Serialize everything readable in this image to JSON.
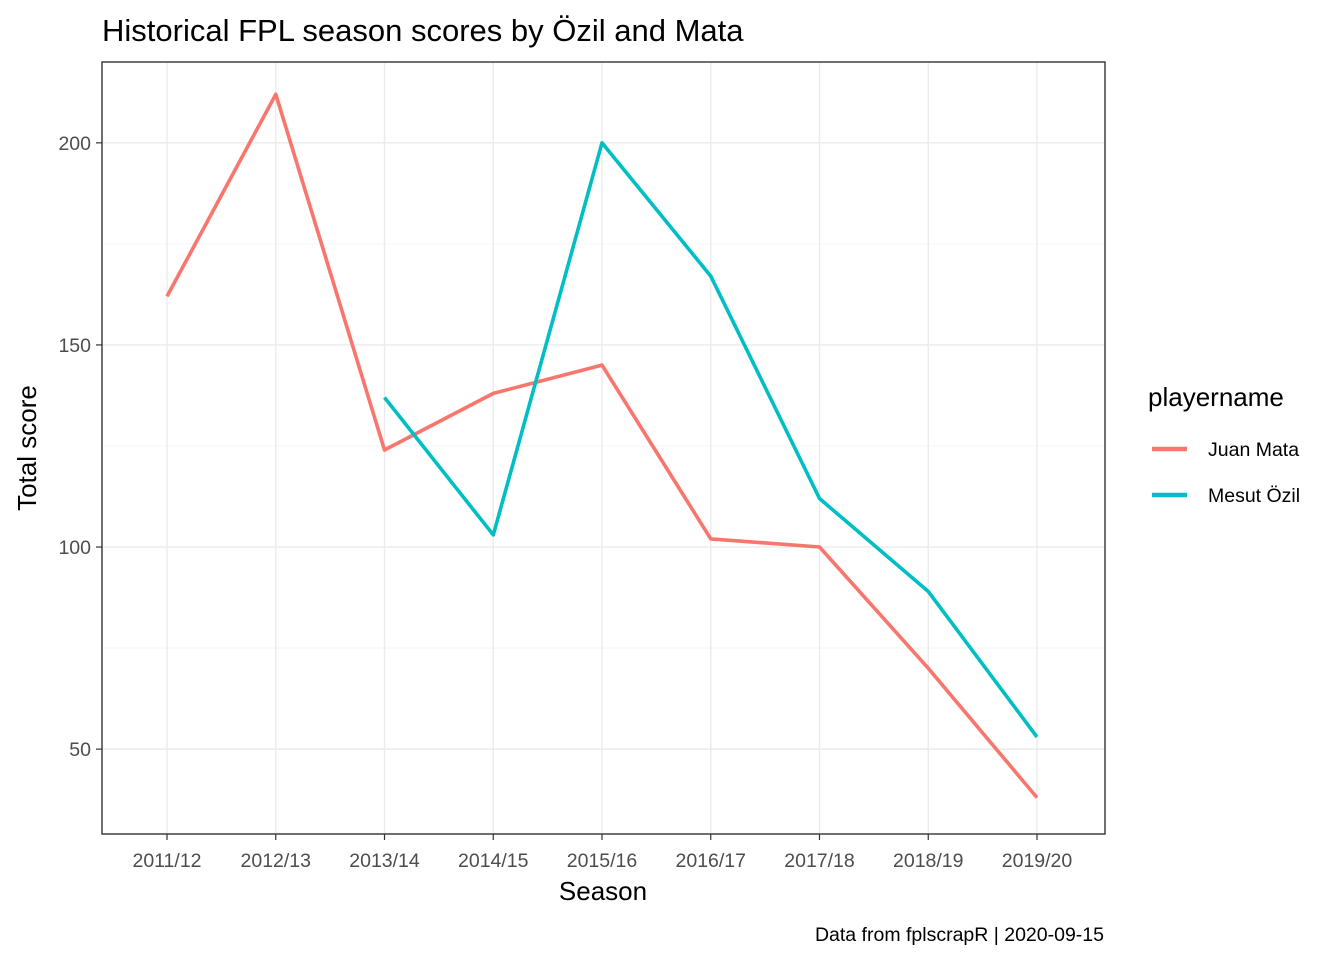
{
  "chart_data": {
    "type": "line",
    "title": "Historical FPL season scores by Özil and Mata",
    "xlabel": "Season",
    "ylabel": "Total score",
    "caption": "Data from fplscrapR | 2020-09-15",
    "categories": [
      "2011/12",
      "2012/13",
      "2013/14",
      "2014/15",
      "2015/16",
      "2016/17",
      "2017/18",
      "2018/19",
      "2019/20"
    ],
    "ylim": [
      29,
      220
    ],
    "yticks": [
      50,
      100,
      150,
      200
    ],
    "grid": true,
    "legend": {
      "title": "playername",
      "placement": "right"
    },
    "series": [
      {
        "name": "Juan Mata",
        "color": "#F8766D",
        "values": [
          162,
          212,
          124,
          138,
          145,
          102,
          100,
          70,
          38
        ]
      },
      {
        "name": "Mesut Özil",
        "color": "#00BFC4",
        "values": [
          null,
          null,
          137,
          103,
          200,
          167,
          112,
          89,
          53
        ]
      }
    ]
  }
}
